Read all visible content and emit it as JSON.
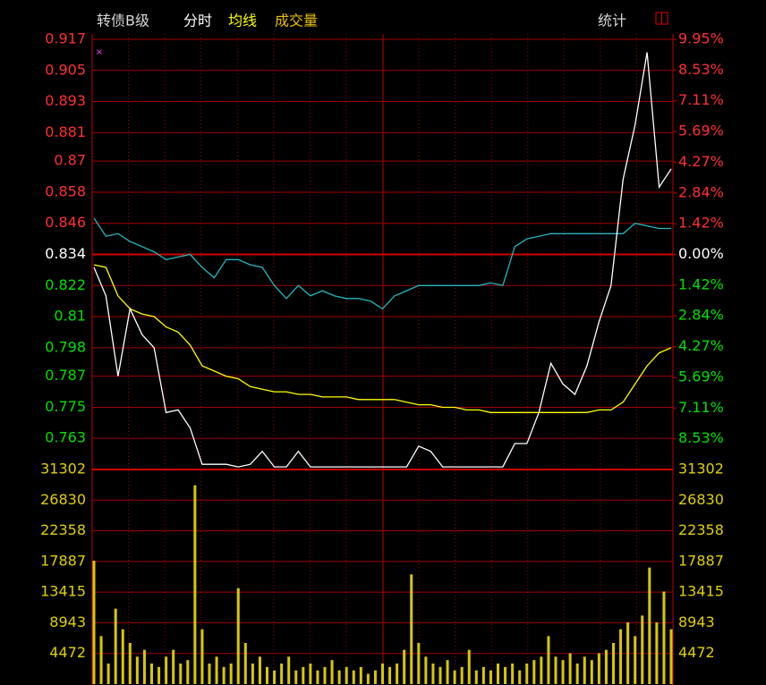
{
  "chart_data": {
    "type": "line",
    "title": "转债B级",
    "stats_label": "统计",
    "series": [
      {
        "name": "分时",
        "color": "#ffffff",
        "values": [
          0.829,
          0.818,
          0.787,
          0.813,
          0.803,
          0.798,
          0.773,
          0.774,
          0.767,
          0.753,
          0.753,
          0.753,
          0.752,
          0.753,
          0.758,
          0.752,
          0.752,
          0.758,
          0.752,
          0.752,
          0.752,
          0.752,
          0.752,
          0.752,
          0.752,
          0.752,
          0.752,
          0.76,
          0.758,
          0.752,
          0.752,
          0.752,
          0.752,
          0.752,
          0.752,
          0.761,
          0.761,
          0.773,
          0.792,
          0.784,
          0.78,
          0.791,
          0.808,
          0.822,
          0.863,
          0.884,
          0.912,
          0.86,
          0.867
        ]
      },
      {
        "name": "均线",
        "color": "#ffff00",
        "values": [
          0.83,
          0.829,
          0.818,
          0.813,
          0.811,
          0.81,
          0.806,
          0.804,
          0.799,
          0.791,
          0.789,
          0.787,
          0.786,
          0.783,
          0.782,
          0.781,
          0.781,
          0.78,
          0.78,
          0.779,
          0.779,
          0.779,
          0.778,
          0.778,
          0.778,
          0.778,
          0.777,
          0.776,
          0.776,
          0.775,
          0.775,
          0.774,
          0.774,
          0.773,
          0.773,
          0.773,
          0.773,
          0.773,
          0.773,
          0.773,
          0.773,
          0.773,
          0.774,
          0.774,
          0.777,
          0.784,
          0.791,
          0.796,
          0.798
        ]
      },
      {
        "color": "#22b8c0",
        "values": [
          0.848,
          0.841,
          0.842,
          0.839,
          0.837,
          0.835,
          0.832,
          0.833,
          0.834,
          0.829,
          0.825,
          0.832,
          0.832,
          0.83,
          0.829,
          0.822,
          0.817,
          0.822,
          0.818,
          0.82,
          0.818,
          0.817,
          0.817,
          0.816,
          0.813,
          0.818,
          0.82,
          0.822,
          0.822,
          0.822,
          0.822,
          0.822,
          0.822,
          0.823,
          0.822,
          0.837,
          0.84,
          0.841,
          0.842,
          0.842,
          0.842,
          0.842,
          0.842,
          0.842,
          0.842,
          0.846,
          0.845,
          0.844,
          0.844
        ]
      }
    ],
    "ylim": [
      0.751,
      0.917
    ],
    "yticks": [
      0.917,
      0.905,
      0.893,
      0.881,
      0.87,
      0.858,
      0.846,
      0.834,
      0.822,
      0.81,
      0.798,
      0.787,
      0.775,
      0.763
    ],
    "y2lim": [
      -9.95,
      9.95
    ],
    "y2ticks": [
      {
        "value": 9.95,
        "label": "9.95%"
      },
      {
        "value": 8.53,
        "label": "8.53%"
      },
      {
        "value": 7.11,
        "label": "7.11%"
      },
      {
        "value": 5.69,
        "label": "5.69%"
      },
      {
        "value": 4.27,
        "label": "4.27%"
      },
      {
        "value": 2.84,
        "label": "2.84%"
      },
      {
        "value": 1.42,
        "label": "1.42%"
      },
      {
        "value": 0,
        "label": "0.00%"
      },
      {
        "value": -1.42,
        "label": "1.42%"
      },
      {
        "value": -2.84,
        "label": "2.84%"
      },
      {
        "value": -4.27,
        "label": "4.27%"
      },
      {
        "value": -5.69,
        "label": "5.69%"
      },
      {
        "value": -7.11,
        "label": "7.11%"
      },
      {
        "value": -8.53,
        "label": "8.53%"
      }
    ],
    "volume": {
      "name": "成交量",
      "color": "#d8c800",
      "ylim": [
        0,
        31302
      ],
      "yticks": [
        31302,
        26830,
        22358,
        17887,
        13415,
        8943,
        4472
      ],
      "values": [
        18000,
        7000,
        3000,
        11000,
        8000,
        6000,
        4000,
        5000,
        3000,
        2500,
        4000,
        5000,
        3000,
        3500,
        29000,
        8000,
        3000,
        4000,
        2500,
        3000,
        14000,
        6000,
        3000,
        4000,
        2500,
        2000,
        3000,
        4000,
        2000,
        2500,
        3000,
        2000,
        2500,
        3500,
        2000,
        2500,
        2000,
        2500,
        1500,
        2000,
        3000,
        2500,
        3000,
        5000,
        16000,
        6000,
        4000,
        3000,
        2500,
        3500,
        2000,
        2500,
        5000,
        2000,
        2500,
        2000,
        3000,
        2500,
        3000,
        2000,
        3000,
        3500,
        4000,
        7000,
        4000,
        3500,
        4500,
        3000,
        4000,
        3500,
        4500,
        5000,
        6000,
        8000,
        9000,
        7000,
        10000,
        17000,
        9000,
        13500,
        8000
      ]
    }
  }
}
